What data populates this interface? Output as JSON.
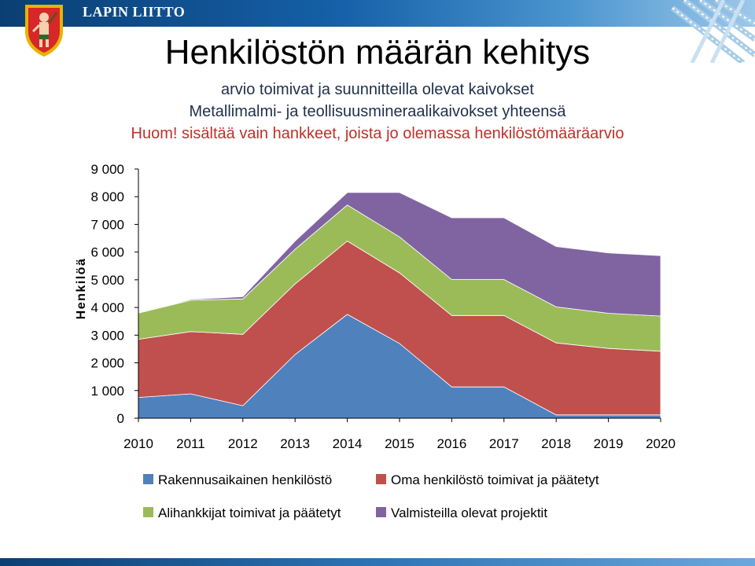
{
  "header": {
    "brand": "LAPIN LIITTO"
  },
  "slide": {
    "title": "Henkilöstön määrän kehitys",
    "subtitle1": "arvio toimivat ja suunnitteilla olevat kaivokset",
    "subtitle2": "Metallimalmi- ja teollisuusmineraalikaivokset  yhteensä",
    "note": "Huom! sisältää vain hankkeet, joista jo olemassa henkilöstömääräarvio"
  },
  "chart_data": {
    "type": "area",
    "stacked": true,
    "ylabel": "Henkilöä",
    "xlabel": "",
    "ylim": [
      0,
      9000
    ],
    "yticks": [
      0,
      1000,
      2000,
      3000,
      4000,
      5000,
      6000,
      7000,
      8000,
      9000
    ],
    "ytick_labels": [
      "0",
      "1 000",
      "2 000",
      "3 000",
      "4 000",
      "5 000",
      "6 000",
      "7 000",
      "8 000",
      "9 000"
    ],
    "categories": [
      "2010",
      "2011",
      "2012",
      "2013",
      "2014",
      "2015",
      "2016",
      "2017",
      "2018",
      "2019",
      "2020"
    ],
    "grid": false,
    "legend_position": "bottom",
    "series": [
      {
        "name": "Rakennusaikainen henkilöstö",
        "color": "#4f81bd",
        "values": [
          750,
          880,
          450,
          2300,
          3750,
          2700,
          1130,
          1130,
          120,
          120,
          120
        ]
      },
      {
        "name": "Oma henkilöstö toimivat  ja päätetyt",
        "color": "#c0504d",
        "values": [
          2100,
          2250,
          2580,
          2550,
          2650,
          2550,
          2580,
          2580,
          2600,
          2400,
          2300
        ]
      },
      {
        "name": "Alihankkijat toimivat  ja päätetyt",
        "color": "#9bbb59",
        "values": [
          950,
          1130,
          1280,
          1250,
          1300,
          1300,
          1300,
          1300,
          1300,
          1270,
          1270
        ]
      },
      {
        "name": "Valmisteilla  olevat projektit",
        "color": "#8064a2",
        "values": [
          0,
          30,
          80,
          300,
          450,
          1600,
          2230,
          2230,
          2180,
          2180,
          2180
        ]
      }
    ]
  }
}
